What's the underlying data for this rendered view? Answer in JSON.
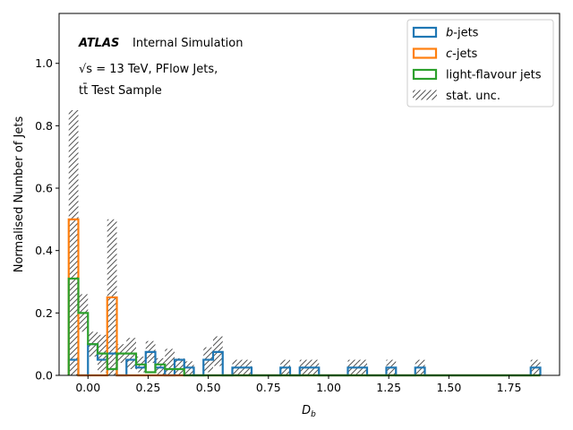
{
  "chart_data": {
    "type": "histogram",
    "xlabel": "D_b",
    "ylabel": "Normalised Number of Jets",
    "xlim": [
      -0.12,
      1.96
    ],
    "ylim": [
      0,
      1.16
    ],
    "xticks": [
      0.0,
      0.25,
      0.5,
      0.75,
      1.0,
      1.25,
      1.5,
      1.75
    ],
    "xtick_labels": [
      "0.00",
      "0.25",
      "0.50",
      "0.75",
      "1.00",
      "1.25",
      "1.50",
      "1.75"
    ],
    "yticks": [
      0.0,
      0.2,
      0.4,
      0.6,
      0.8,
      1.0
    ],
    "ytick_labels": [
      "0.0",
      "0.2",
      "0.4",
      "0.6",
      "0.8",
      "1.0"
    ],
    "grid": false,
    "legend_position": "top-right",
    "annotations": {
      "atlas": "ATLAS",
      "internal": "Internal Simulation",
      "line2": "√s = 13 TeV, PFlow Jets,",
      "line3": "tt̄ Test Sample"
    },
    "legend": [
      {
        "label": "b-jets",
        "kind": "step",
        "color": "#1f77b4"
      },
      {
        "label": "c-jets",
        "kind": "step",
        "color": "#ff7f0e"
      },
      {
        "label": "light-flavour jets",
        "kind": "step",
        "color": "#2ca02c"
      },
      {
        "label": "stat. unc.",
        "kind": "hatch",
        "color": "#555555"
      }
    ],
    "bins": {
      "start": -0.08,
      "width": 0.04,
      "count": 49
    },
    "series": [
      {
        "name": "b-jets",
        "color": "#1f77b4",
        "values": [
          0.05,
          0,
          0.1,
          0.05,
          0.07,
          0,
          0.05,
          0.025,
          0.075,
          0.025,
          0,
          0.05,
          0.025,
          0,
          0.05,
          0.075,
          0,
          0.025,
          0.025,
          0,
          0,
          0,
          0.025,
          0,
          0.025,
          0.025,
          0,
          0,
          0,
          0.025,
          0.025,
          0,
          0,
          0.025,
          0,
          0,
          0.025,
          0,
          0,
          0,
          0,
          0,
          0,
          0,
          0,
          0,
          0,
          0,
          0.025
        ]
      },
      {
        "name": "c-jets",
        "color": "#ff7f0e",
        "values": [
          0.5,
          0,
          0,
          0,
          0.25,
          0,
          0,
          0,
          0,
          0,
          0,
          0,
          0,
          0,
          0,
          0,
          0,
          0,
          0,
          0,
          0,
          0,
          0,
          0,
          0,
          0,
          0,
          0,
          0,
          0,
          0,
          0,
          0,
          0,
          0,
          0,
          0,
          0,
          0,
          0,
          0,
          0,
          0,
          0,
          0,
          0,
          0,
          0,
          0
        ]
      },
      {
        "name": "light-flavour jets",
        "color": "#2ca02c",
        "values": [
          0.31,
          0.2,
          0.1,
          0.07,
          0.02,
          0.07,
          0.07,
          0.035,
          0.01,
          0.035,
          0.02,
          0.02,
          0,
          0,
          0,
          0,
          0,
          0,
          0,
          0,
          0,
          0,
          0,
          0,
          0,
          0,
          0,
          0,
          0,
          0,
          0,
          0,
          0,
          0,
          0,
          0,
          0,
          0,
          0,
          0,
          0,
          0,
          0,
          0,
          0,
          0,
          0,
          0,
          0
        ]
      }
    ],
    "stat_unc": {
      "name": "stat. unc.",
      "up": [
        0.85,
        0.26,
        0.14,
        0.13,
        0.5,
        0.1,
        0.12,
        0.06,
        0.11,
        0.055,
        0.085,
        0.055,
        0.045,
        0,
        0.09,
        0.125,
        0,
        0.05,
        0.05,
        0,
        0,
        0,
        0.05,
        0,
        0.05,
        0.05,
        0,
        0,
        0,
        0.05,
        0.05,
        0,
        0,
        0.05,
        0,
        0,
        0.05,
        0,
        0,
        0,
        0,
        0,
        0,
        0,
        0,
        0,
        0,
        0,
        0.05
      ],
      "down": [
        0,
        0.14,
        0.06,
        0.01,
        0,
        0.04,
        0.02,
        0.01,
        0.04,
        0,
        0,
        0,
        0,
        0,
        0.01,
        0.03,
        0,
        0,
        0,
        0,
        0,
        0,
        0,
        0,
        0,
        0,
        0,
        0,
        0,
        0,
        0,
        0,
        0,
        0,
        0,
        0,
        0,
        0,
        0,
        0,
        0,
        0,
        0,
        0,
        0,
        0,
        0,
        0,
        0
      ]
    }
  }
}
